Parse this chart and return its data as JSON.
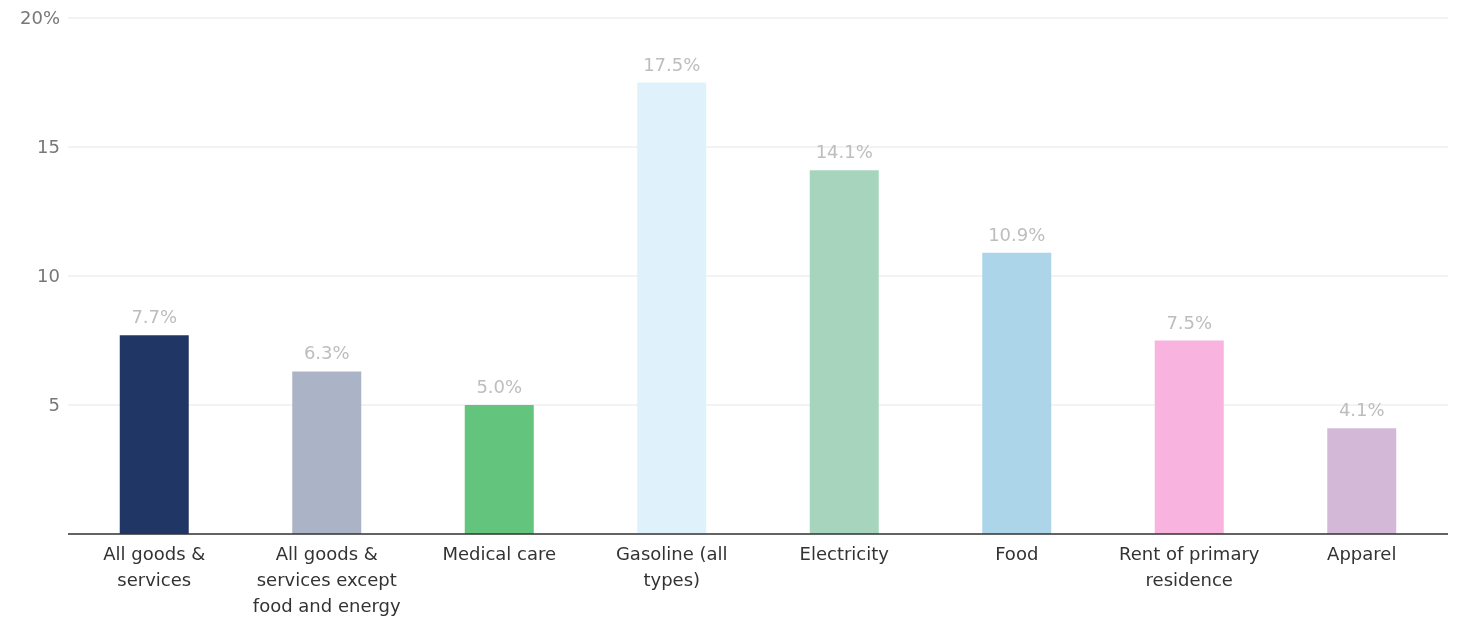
{
  "chart_data": {
    "type": "bar",
    "categories": [
      "All goods & services",
      "All goods & services except food and energy",
      "Medical care",
      "Gasoline (all types)",
      "Electricity",
      "Food",
      "Rent of primary residence",
      "Apparel"
    ],
    "values": [
      7.7,
      6.3,
      5.0,
      17.5,
      14.1,
      10.9,
      7.5,
      4.1
    ],
    "colors": [
      "#203766",
      "#abb3c6",
      "#63c57d",
      "#dff1fb",
      "#a7d4bc",
      "#acd5ea",
      "#f8b3df",
      "#d3b8d8"
    ],
    "value_labels": [
      "7.7%",
      "6.3%",
      "5.0%",
      "17.5%",
      "14.1%",
      "10.9%",
      "7.5%",
      "4.1%"
    ],
    "ylim": [
      0,
      20
    ],
    "yticks": [
      {
        "value": 20,
        "label": "20%"
      },
      15,
      10,
      5
    ],
    "grid": "y",
    "legend": false
  }
}
